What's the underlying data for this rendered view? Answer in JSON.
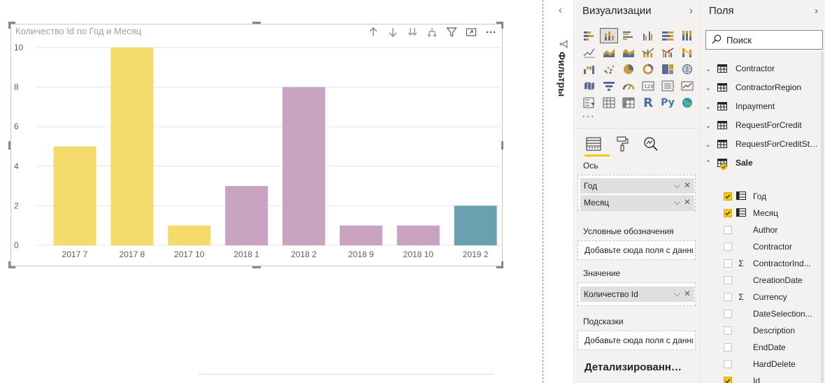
{
  "chart": {
    "title": "Количество Id по Год и Месяц"
  },
  "chart_data": {
    "type": "bar",
    "categories": [
      "2017 7",
      "2017 8",
      "2017 10",
      "2018 1",
      "2018 2",
      "2018 9",
      "2018 10",
      "2019 2"
    ],
    "values": [
      5,
      10,
      1,
      3,
      8,
      1,
      1,
      2
    ],
    "bar_colors": [
      "#F5DB6C",
      "#F5DB6C",
      "#F5DB6C",
      "#C8A4C2",
      "#C8A4C2",
      "#C8A4C2",
      "#C8A4C2",
      "#69A1B1"
    ],
    "title": "Количество Id по Год и Месяц",
    "xlabel": "",
    "ylabel": "",
    "ylim": [
      0,
      10
    ],
    "yticks": [
      "0",
      "2",
      "4",
      "6",
      "8",
      "10"
    ],
    "grid": true
  },
  "filters": {
    "label": "Фильтры",
    "chevron": "‹"
  },
  "visualizations": {
    "title": "Визуализации",
    "more": "···",
    "axis_label": "Ось",
    "axis_fields": [
      "Год",
      "Месяц"
    ],
    "legend_label": "Условные обозначения",
    "legend_placeholder": "Добавьте сюда поля с данными",
    "value_label": "Значение",
    "value_fields": [
      "Количество Id"
    ],
    "tooltips_label": "Подсказки",
    "tooltips_placeholder": "Добавьте сюда поля с данными",
    "drillthrough_label": "Детализированные данные"
  },
  "fields": {
    "title": "Поля",
    "search_placeholder": "Поиск",
    "tables": [
      "Contractor",
      "ContractorRegion",
      "Inpayment",
      "RequestForCredit",
      "RequestForCreditSt…",
      "Sale"
    ],
    "sale_fields": [
      {
        "name": "Год",
        "checked": true,
        "kind": "hierarchy"
      },
      {
        "name": "Месяц",
        "checked": true,
        "kind": "hierarchy"
      },
      {
        "name": "Author",
        "checked": false,
        "kind": ""
      },
      {
        "name": "Contractor",
        "checked": false,
        "kind": ""
      },
      {
        "name": "ContractorInd...",
        "checked": false,
        "kind": "sum"
      },
      {
        "name": "CreationDate",
        "checked": false,
        "kind": ""
      },
      {
        "name": "Currency",
        "checked": false,
        "kind": "sum"
      },
      {
        "name": "DateSelection...",
        "checked": false,
        "kind": ""
      },
      {
        "name": "Description",
        "checked": false,
        "kind": ""
      },
      {
        "name": "EndDate",
        "checked": false,
        "kind": ""
      },
      {
        "name": "HardDelete",
        "checked": false,
        "kind": ""
      },
      {
        "name": "Id",
        "checked": true,
        "kind": ""
      }
    ]
  },
  "colors": {
    "accent": "#F2C811",
    "pane_bg": "#F3F2F1"
  }
}
